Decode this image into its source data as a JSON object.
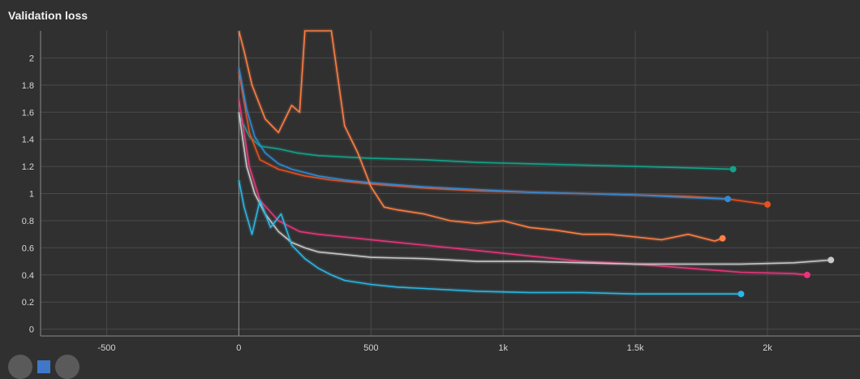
{
  "card": {
    "title": "Validation loss"
  },
  "chart_data": {
    "type": "line",
    "title": "Validation loss",
    "xlabel": "",
    "ylabel": "",
    "xlim": [
      -750,
      2350
    ],
    "ylim": [
      -0.05,
      2.2
    ],
    "x_ticks": [
      -500,
      0,
      500,
      1000,
      1500,
      2000
    ],
    "x_tick_labels": [
      "-500",
      "0",
      "500",
      "1k",
      "1.5k",
      "2k"
    ],
    "y_ticks": [
      0,
      0.2,
      0.4,
      0.6,
      0.8,
      1,
      1.2,
      1.4,
      1.6,
      1.8,
      2
    ],
    "y_tick_labels": [
      "0",
      "0.2",
      "0.4",
      "0.6",
      "0.8",
      "1",
      "1.2",
      "1.4",
      "1.6",
      "1.8",
      "2"
    ],
    "grid": true,
    "series": [
      {
        "color": "#12a38a",
        "x": [
          0,
          40,
          80,
          150,
          220,
          300,
          400,
          500,
          700,
          900,
          1100,
          1300,
          1500,
          1700,
          1870
        ],
        "y": [
          1.58,
          1.42,
          1.35,
          1.33,
          1.3,
          1.28,
          1.27,
          1.26,
          1.25,
          1.23,
          1.22,
          1.21,
          1.2,
          1.19,
          1.18
        ]
      },
      {
        "color": "#e8501e",
        "x": [
          0,
          40,
          80,
          150,
          250,
          350,
          500,
          700,
          900,
          1100,
          1300,
          1500,
          1700,
          1850,
          2000
        ],
        "y": [
          1.9,
          1.45,
          1.25,
          1.18,
          1.13,
          1.1,
          1.07,
          1.04,
          1.02,
          1.01,
          1.0,
          0.99,
          0.98,
          0.96,
          0.92
        ]
      },
      {
        "color": "#2f8ad6",
        "x": [
          0,
          30,
          60,
          100,
          150,
          200,
          300,
          400,
          500,
          700,
          900,
          1100,
          1300,
          1500,
          1700,
          1850
        ],
        "y": [
          1.93,
          1.62,
          1.42,
          1.3,
          1.22,
          1.18,
          1.13,
          1.1,
          1.08,
          1.05,
          1.03,
          1.01,
          1.0,
          0.99,
          0.97,
          0.96
        ]
      },
      {
        "color": "#ff7f45",
        "x": [
          0,
          20,
          50,
          100,
          150,
          200,
          230,
          250,
          300,
          350,
          400,
          450,
          500,
          550,
          600,
          700,
          800,
          900,
          1000,
          1100,
          1200,
          1300,
          1400,
          1500,
          1600,
          1700,
          1800,
          1830
        ],
        "y": [
          2.2,
          2.05,
          1.8,
          1.55,
          1.45,
          1.65,
          1.6,
          2.2,
          2.2,
          2.2,
          1.5,
          1.3,
          1.05,
          0.9,
          0.88,
          0.85,
          0.8,
          0.78,
          0.8,
          0.75,
          0.73,
          0.7,
          0.7,
          0.68,
          0.66,
          0.7,
          0.65,
          0.67
        ]
      },
      {
        "color": "#e8347a",
        "x": [
          0,
          40,
          80,
          150,
          230,
          300,
          400,
          500,
          700,
          900,
          1100,
          1300,
          1500,
          1700,
          1900,
          2100,
          2150
        ],
        "y": [
          1.7,
          1.2,
          0.95,
          0.8,
          0.72,
          0.7,
          0.68,
          0.66,
          0.62,
          0.58,
          0.54,
          0.5,
          0.48,
          0.45,
          0.42,
          0.41,
          0.4
        ]
      },
      {
        "color": "#c8c8c8",
        "x": [
          0,
          30,
          60,
          100,
          150,
          200,
          250,
          300,
          400,
          500,
          700,
          900,
          1100,
          1300,
          1500,
          1700,
          1900,
          2100,
          2240
        ],
        "y": [
          1.6,
          1.2,
          1.0,
          0.85,
          0.72,
          0.64,
          0.6,
          0.57,
          0.55,
          0.53,
          0.52,
          0.5,
          0.5,
          0.49,
          0.48,
          0.48,
          0.48,
          0.49,
          0.51
        ]
      },
      {
        "color": "#2bb7e6",
        "x": [
          0,
          20,
          50,
          80,
          120,
          160,
          200,
          250,
          300,
          350,
          400,
          500,
          600,
          700,
          900,
          1100,
          1300,
          1500,
          1700,
          1900
        ],
        "y": [
          1.1,
          0.9,
          0.7,
          0.95,
          0.75,
          0.85,
          0.62,
          0.52,
          0.45,
          0.4,
          0.36,
          0.33,
          0.31,
          0.3,
          0.28,
          0.27,
          0.27,
          0.26,
          0.26,
          0.26
        ]
      }
    ]
  }
}
